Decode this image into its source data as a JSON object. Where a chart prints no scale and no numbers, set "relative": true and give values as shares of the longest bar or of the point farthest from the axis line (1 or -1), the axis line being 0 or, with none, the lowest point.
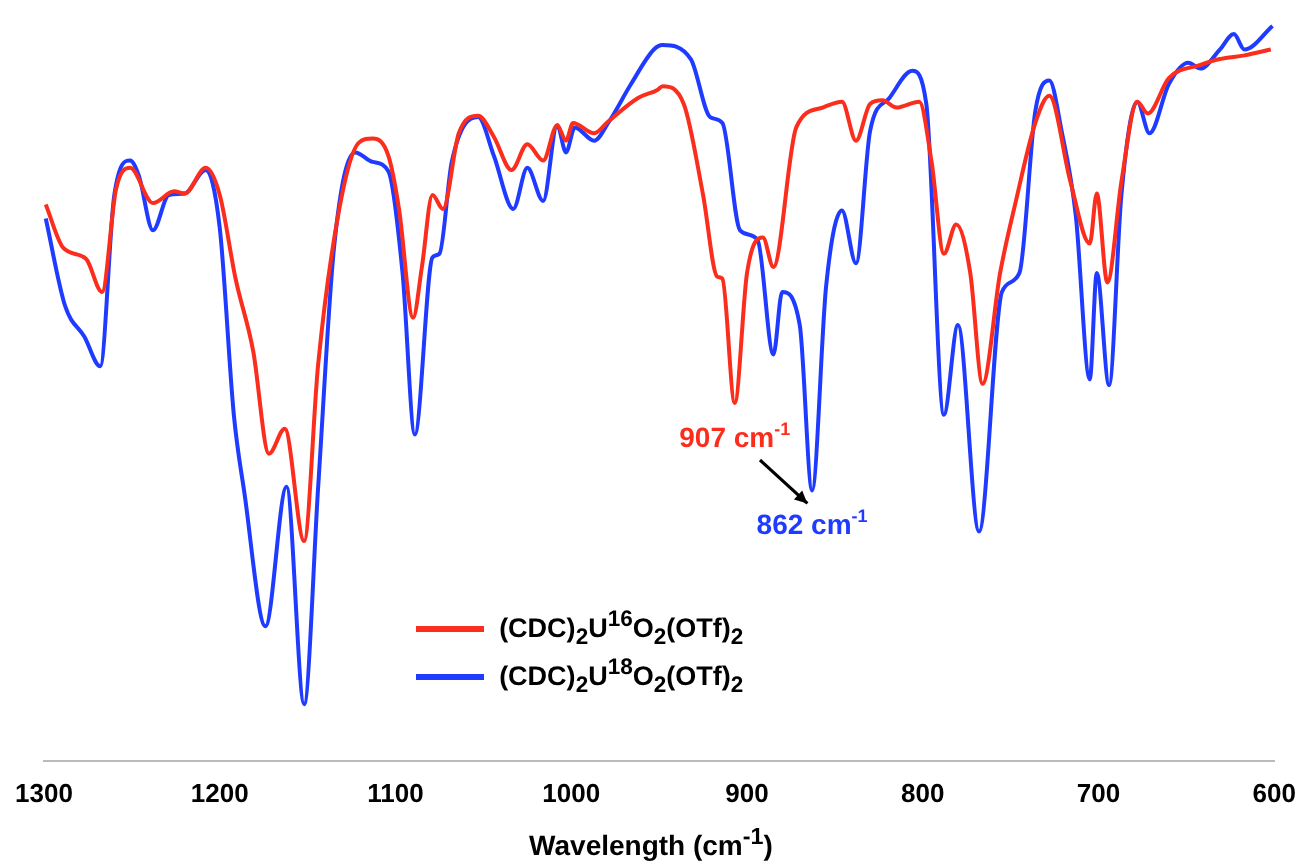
{
  "chart_data": {
    "type": "line",
    "relative": true,
    "xlabel": "Wavelength (cm$^{-1}$)",
    "xlim": [
      1300,
      600
    ],
    "xticks": [
      1300,
      1200,
      1100,
      1000,
      900,
      800,
      700,
      600
    ],
    "grid": false,
    "legend": "bottom",
    "marker": "none",
    "line_style": "solid",
    "series": [
      {
        "name": "(CDC)$_{2}$U$^{16}$O$_{2}$(OTf)$_{2}$",
        "color": "#fb2d1c",
        "x": [
          1299,
          1289,
          1276,
          1267,
          1259,
          1251,
          1238,
          1226,
          1220,
          1208,
          1200,
          1191,
          1181,
          1172,
          1163,
          1152,
          1144,
          1132,
          1121,
          1113,
          1104,
          1098,
          1090,
          1085,
          1079,
          1073,
          1064,
          1053,
          1044,
          1034,
          1025,
          1016,
          1008,
          1003,
          999,
          987,
          979,
          962,
          951,
          948,
          936,
          925,
          917,
          914,
          907,
          900,
          891,
          885,
          872,
          857,
          846,
          838,
          830,
          823,
          815,
          802,
          795,
          788,
          781,
          773,
          766,
          756,
          747,
          736,
          728,
          716,
          705,
          701,
          695,
          687,
          678,
          672,
          660,
          642,
          631,
          617,
          602
        ],
        "values": [
          0.757,
          0.698,
          0.683,
          0.638,
          0.778,
          0.807,
          0.759,
          0.775,
          0.772,
          0.807,
          0.77,
          0.656,
          0.558,
          0.418,
          0.452,
          0.299,
          0.54,
          0.751,
          0.841,
          0.847,
          0.823,
          0.751,
          0.603,
          0.672,
          0.77,
          0.751,
          0.854,
          0.878,
          0.849,
          0.804,
          0.839,
          0.817,
          0.865,
          0.844,
          0.868,
          0.854,
          0.87,
          0.902,
          0.913,
          0.918,
          0.894,
          0.77,
          0.659,
          0.656,
          0.487,
          0.664,
          0.712,
          0.672,
          0.862,
          0.889,
          0.897,
          0.844,
          0.894,
          0.899,
          0.889,
          0.897,
          0.815,
          0.69,
          0.73,
          0.664,
          0.513,
          0.664,
          0.762,
          0.868,
          0.905,
          0.788,
          0.704,
          0.772,
          0.651,
          0.788,
          0.897,
          0.881,
          0.929,
          0.947,
          0.955,
          0.96,
          0.968
        ]
      },
      {
        "name": "(CDC)$_{2}$U$^{18}$O$_{2}$(OTf)$_{2}$",
        "color": "#1f3bff",
        "x": [
          1299,
          1288,
          1277,
          1268,
          1260,
          1251,
          1246,
          1238,
          1229,
          1220,
          1208,
          1200,
          1192,
          1186,
          1174,
          1162,
          1152,
          1144,
          1135,
          1123,
          1113,
          1104,
          1096,
          1089,
          1079,
          1075,
          1068,
          1053,
          1044,
          1033,
          1025,
          1016,
          1008,
          1003,
          998,
          987,
          979,
          966,
          953,
          948,
          932,
          921,
          914,
          904,
          894,
          885,
          880,
          870,
          863,
          855,
          846,
          838,
          830,
          819,
          806,
          798,
          788,
          780,
          768,
          755,
          745,
          736,
          728,
          721,
          713,
          705,
          701,
          694,
          687,
          678,
          671,
          660,
          649,
          642,
          631,
          623,
          617,
          601
        ],
        "values": [
          0.738,
          0.619,
          0.577,
          0.537,
          0.77,
          0.817,
          0.796,
          0.722,
          0.77,
          0.772,
          0.804,
          0.725,
          0.471,
          0.365,
          0.183,
          0.373,
          0.077,
          0.373,
          0.698,
          0.828,
          0.815,
          0.802,
          0.664,
          0.444,
          0.685,
          0.69,
          0.815,
          0.876,
          0.823,
          0.751,
          0.807,
          0.762,
          0.865,
          0.828,
          0.862,
          0.844,
          0.868,
          0.921,
          0.968,
          0.974,
          0.955,
          0.876,
          0.868,
          0.722,
          0.709,
          0.553,
          0.638,
          0.593,
          0.368,
          0.646,
          0.749,
          0.677,
          0.857,
          0.902,
          0.939,
          0.894,
          0.471,
          0.593,
          0.312,
          0.638,
          0.664,
          0.884,
          0.926,
          0.857,
          0.743,
          0.519,
          0.664,
          0.511,
          0.77,
          0.897,
          0.854,
          0.921,
          0.95,
          0.942,
          0.968,
          0.989,
          0.968,
          1.0
        ]
      }
    ],
    "annotations": [
      {
        "text": "907 cm$^{-1}$",
        "x": 907,
        "y": 0.487
      },
      {
        "text": "862 cm$^{-1}$",
        "x": 863,
        "y": 0.368
      }
    ]
  }
}
